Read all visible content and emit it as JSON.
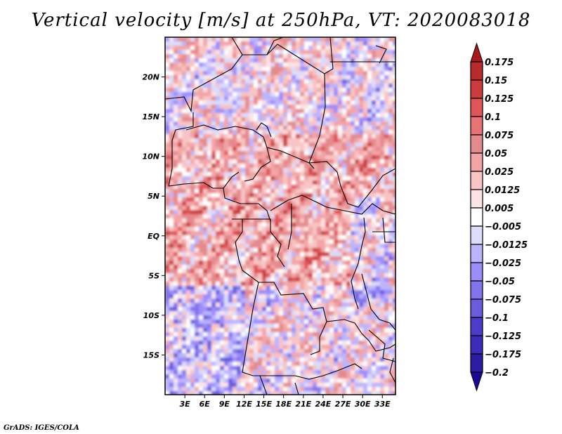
{
  "title": "Vertical velocity [m/s] at 250hPa, VT: 2020083018",
  "footer": "GrADS: IGES/COLA",
  "map": {
    "lon_range": [
      0,
      35
    ],
    "lat_range": [
      -20,
      25
    ],
    "lat_ticks": [
      {
        "value": 20,
        "label": "20N"
      },
      {
        "value": 15,
        "label": "15N"
      },
      {
        "value": 10,
        "label": "10N"
      },
      {
        "value": 5,
        "label": "5N"
      },
      {
        "value": 0,
        "label": "EQ"
      },
      {
        "value": -5,
        "label": "5S"
      },
      {
        "value": -10,
        "label": "10S"
      },
      {
        "value": -15,
        "label": "15S"
      }
    ],
    "lon_ticks": [
      {
        "value": 3,
        "label": "3E"
      },
      {
        "value": 6,
        "label": "6E"
      },
      {
        "value": 9,
        "label": "9E"
      },
      {
        "value": 12,
        "label": "12E"
      },
      {
        "value": 15,
        "label": "15E"
      },
      {
        "value": 18,
        "label": "18E"
      },
      {
        "value": 21,
        "label": "21E"
      },
      {
        "value": 24,
        "label": "24E"
      },
      {
        "value": 27,
        "label": "27E"
      },
      {
        "value": 30,
        "label": "30E"
      },
      {
        "value": 33,
        "label": "33E"
      }
    ]
  },
  "chart_data": {
    "type": "heatmap",
    "title": "Vertical velocity [m/s] at 250hPa, VT: 2020083018",
    "variable": "Vertical velocity",
    "units": "m/s",
    "level": "250hPa",
    "valid_time": "2020083018",
    "xlabel": "",
    "ylabel": "",
    "legend_position": "right",
    "colorbar": {
      "levels": [
        0.175,
        0.15,
        0.125,
        0.1,
        0.075,
        0.05,
        0.025,
        0.0125,
        0.005,
        -0.005,
        -0.0125,
        -0.025,
        -0.05,
        -0.075,
        -0.1,
        -0.125,
        -0.175,
        -0.2
      ],
      "labels": [
        "0.175",
        "0.15",
        "0.125",
        "0.1",
        "0.075",
        "0.05",
        "0.025",
        "0.0125",
        "0.005",
        "-0.005",
        "-0.0125",
        "-0.025",
        "-0.05",
        "-0.075",
        "-0.1",
        "-0.125",
        "-0.175",
        "-0.2"
      ],
      "colors_top_to_bottom": [
        "#a8181c",
        "#b82a2c",
        "#cc3c3e",
        "#e05558",
        "#e87274",
        "#e48a8e",
        "#f3a4a6",
        "#f8c4c4",
        "#fde4e4",
        "#ffffff",
        "#dcdcfc",
        "#bcb4fc",
        "#9c8cfc",
        "#8274ec",
        "#6a5cdc",
        "#4c3ccc",
        "#3c2cbc",
        "#2c1ca4",
        "#1c0894"
      ],
      "extend": "both"
    },
    "notes": "Mottled field: predominantly positive (red) over central Africa 10N-10S, negative (blue) over the Atlantic SW and East Africa; dark-red cores near 10N 23-27E and 7N 12-16E"
  }
}
